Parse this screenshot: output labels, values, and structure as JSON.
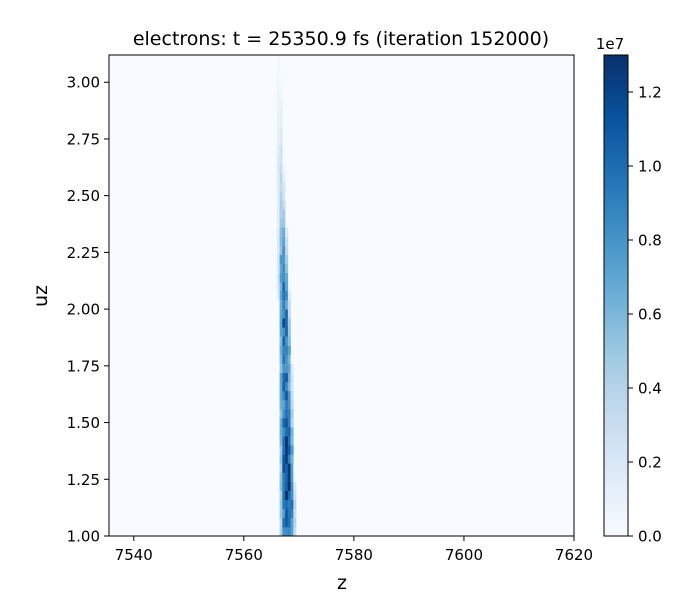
{
  "chart_data": {
    "type": "heatmap",
    "title": "electrons:   t =  25350.9 fs   (iteration 152000)",
    "xlabel": "z",
    "ylabel": "uz",
    "xlim": [
      7535.5,
      7620
    ],
    "ylim": [
      1.0,
      3.12
    ],
    "x_ticks": [
      7540,
      7560,
      7580,
      7600,
      7620
    ],
    "x_tick_labels": [
      "7540",
      "7560",
      "7580",
      "7600",
      "7620"
    ],
    "y_ticks": [
      1.0,
      1.25,
      1.5,
      1.75,
      2.0,
      2.25,
      2.5,
      2.75,
      3.0
    ],
    "y_tick_labels": [
      "1.00",
      "1.25",
      "1.50",
      "1.75",
      "2.00",
      "2.25",
      "2.50",
      "2.75",
      "3.00"
    ],
    "colorbar": {
      "colormap": "Blues",
      "range": [
        0,
        13000000
      ],
      "ticks": [
        0,
        2000000,
        4000000,
        6000000,
        8000000,
        10000000,
        12000000
      ],
      "tick_labels": [
        "0.0",
        "0.2",
        "0.4",
        "0.6",
        "0.8",
        "1.0",
        "1.2"
      ],
      "offset_label": "1e7"
    },
    "grid": false,
    "colors": {
      "low": "#f7fbff",
      "high": "#08306b"
    },
    "band": [
      {
        "uz": 1.02,
        "z_left": 7566.5,
        "z_right": 7569.4,
        "peak": 10000000
      },
      {
        "uz": 1.1,
        "z_left": 7566.5,
        "z_right": 7569.4,
        "peak": 11200000
      },
      {
        "uz": 1.2,
        "z_left": 7566.5,
        "z_right": 7569.3,
        "peak": 12400000
      },
      {
        "uz": 1.3,
        "z_left": 7566.5,
        "z_right": 7569.2,
        "peak": 11800000
      },
      {
        "uz": 1.4,
        "z_left": 7566.4,
        "z_right": 7569.1,
        "peak": 11500000
      },
      {
        "uz": 1.5,
        "z_left": 7566.4,
        "z_right": 7569.0,
        "peak": 10500000
      },
      {
        "uz": 1.6,
        "z_left": 7566.4,
        "z_right": 7568.9,
        "peak": 9600000
      },
      {
        "uz": 1.7,
        "z_left": 7566.3,
        "z_right": 7568.8,
        "peak": 9800000
      },
      {
        "uz": 1.8,
        "z_left": 7566.3,
        "z_right": 7568.7,
        "peak": 10100000
      },
      {
        "uz": 1.9,
        "z_left": 7566.3,
        "z_right": 7568.5,
        "peak": 10300000
      },
      {
        "uz": 2.0,
        "z_left": 7566.3,
        "z_right": 7568.4,
        "peak": 10000000
      },
      {
        "uz": 2.1,
        "z_left": 7566.2,
        "z_right": 7568.2,
        "peak": 8800000
      },
      {
        "uz": 2.2,
        "z_left": 7566.2,
        "z_right": 7568.0,
        "peak": 7600000
      },
      {
        "uz": 2.3,
        "z_left": 7566.2,
        "z_right": 7567.9,
        "peak": 6700000
      },
      {
        "uz": 2.4,
        "z_left": 7566.2,
        "z_right": 7567.7,
        "peak": 5300000
      },
      {
        "uz": 2.5,
        "z_left": 7566.2,
        "z_right": 7567.5,
        "peak": 4200000
      },
      {
        "uz": 2.6,
        "z_left": 7566.1,
        "z_right": 7567.3,
        "peak": 3300000
      },
      {
        "uz": 2.7,
        "z_left": 7566.1,
        "z_right": 7567.2,
        "peak": 2400000
      },
      {
        "uz": 2.8,
        "z_left": 7566.1,
        "z_right": 7567.0,
        "peak": 1800000
      },
      {
        "uz": 2.9,
        "z_left": 7566.1,
        "z_right": 7566.9,
        "peak": 1100000
      },
      {
        "uz": 3.0,
        "z_left": 7566.1,
        "z_right": 7566.8,
        "peak": 700000
      },
      {
        "uz": 3.1,
        "z_left": 7566.1,
        "z_right": 7566.7,
        "peak": 300000
      }
    ]
  }
}
